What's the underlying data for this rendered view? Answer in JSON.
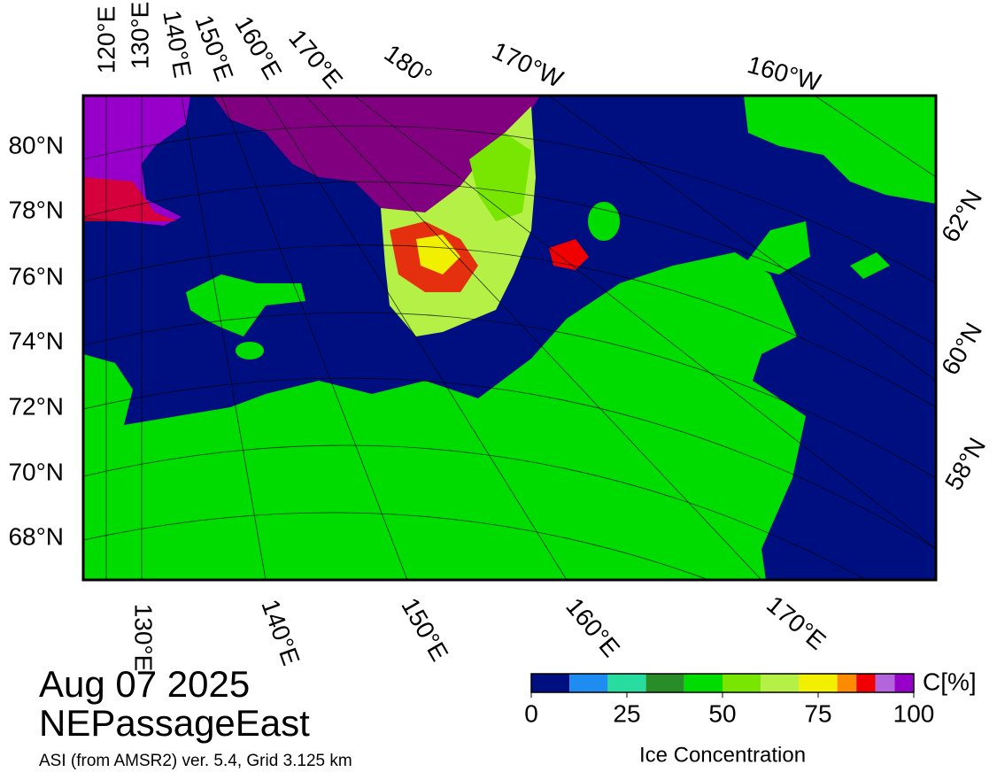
{
  "map": {
    "lon_labels_top": [
      "120°E",
      "130°E",
      "140°E",
      "150°E",
      "160°E",
      "170°E",
      "180°",
      "170°W",
      "160°W"
    ],
    "lat_labels_left": [
      "80°N",
      "78°N",
      "76°N",
      "74°N",
      "72°N",
      "70°N",
      "68°N"
    ],
    "lat_labels_right": [
      "62°N",
      "60°N",
      "58°N"
    ],
    "lon_labels_bottom": [
      "130°E",
      "140°E",
      "150°E",
      "160°E",
      "170°E"
    ]
  },
  "date": "Aug 07 2025",
  "region": "NEPassageEast",
  "source": "ASI (from AMSR2) ver. 5.4,  Grid 3.125 km",
  "colorbar": {
    "label": "Ice Concentration",
    "unit": "C[%]",
    "lim": [
      0,
      100
    ],
    "ticks": [
      0,
      25,
      50,
      75,
      100
    ],
    "bounds": [
      0,
      10,
      20,
      30,
      40,
      50,
      60,
      70,
      80,
      85,
      90,
      95,
      100
    ],
    "colors": [
      "#000f80",
      "#1e8cf0",
      "#28dca0",
      "#288c28",
      "#00dc00",
      "#78e600",
      "#b4f046",
      "#f0f000",
      "#ff8c00",
      "#f00000",
      "#b464dc",
      "#9600c8"
    ]
  }
}
